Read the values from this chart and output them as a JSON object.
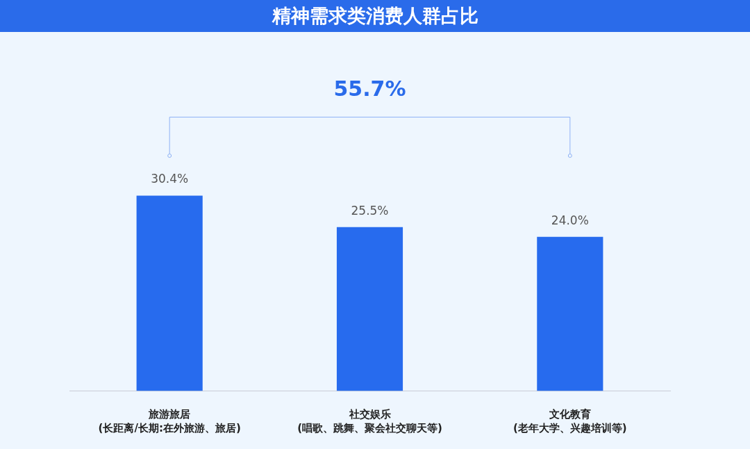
{
  "chart_data": {
    "type": "bar",
    "title": "精神需求类消费人群占比",
    "categories": [
      "旅游旅居\n(长距离/长期:在外旅游、旅居)",
      "社交娱乐\n(唱歌、跳舞、聚会社交聊天等)",
      "文化教育\n(老年大学、兴趣培训等)"
    ],
    "values": [
      30.4,
      25.5,
      24.0
    ],
    "color": "#276bee",
    "value_labels": [
      "30.4%",
      "25.5%",
      "24.0%"
    ],
    "annotations": [
      "55.7%"
    ]
  }
}
